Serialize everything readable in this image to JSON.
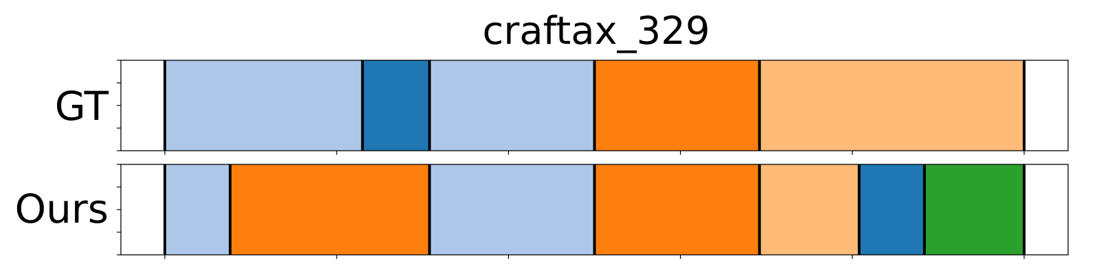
{
  "title": "craftax_329",
  "chart_data": {
    "type": "segmented-timeline",
    "title": "craftax_329",
    "xlim": [
      0,
      55
    ],
    "x_ticks": [
      0,
      10,
      20,
      30,
      40,
      50
    ],
    "xticklabels_visible": false,
    "colors": {
      "light-blue": "#aec7e8",
      "blue": "#1f77b4",
      "orange": "#ff7f0e",
      "light-orange": "#ffbb78",
      "green": "#2ca02c"
    },
    "rows": [
      {
        "label": "GT",
        "segments": [
          {
            "start": 0,
            "end": 11.5,
            "color": "light-blue"
          },
          {
            "start": 11.5,
            "end": 15.4,
            "color": "blue"
          },
          {
            "start": 15.4,
            "end": 25,
            "color": "light-blue"
          },
          {
            "start": 25,
            "end": 34.6,
            "color": "orange"
          },
          {
            "start": 34.6,
            "end": 50,
            "color": "light-orange"
          }
        ]
      },
      {
        "label": "Ours",
        "segments": [
          {
            "start": 0,
            "end": 3.8,
            "color": "light-blue"
          },
          {
            "start": 3.8,
            "end": 15.4,
            "color": "orange"
          },
          {
            "start": 15.4,
            "end": 25,
            "color": "light-blue"
          },
          {
            "start": 25,
            "end": 34.6,
            "color": "orange"
          },
          {
            "start": 34.6,
            "end": 40.4,
            "color": "light-orange"
          },
          {
            "start": 40.4,
            "end": 44.2,
            "color": "blue"
          },
          {
            "start": 44.2,
            "end": 50,
            "color": "green"
          }
        ]
      }
    ]
  }
}
